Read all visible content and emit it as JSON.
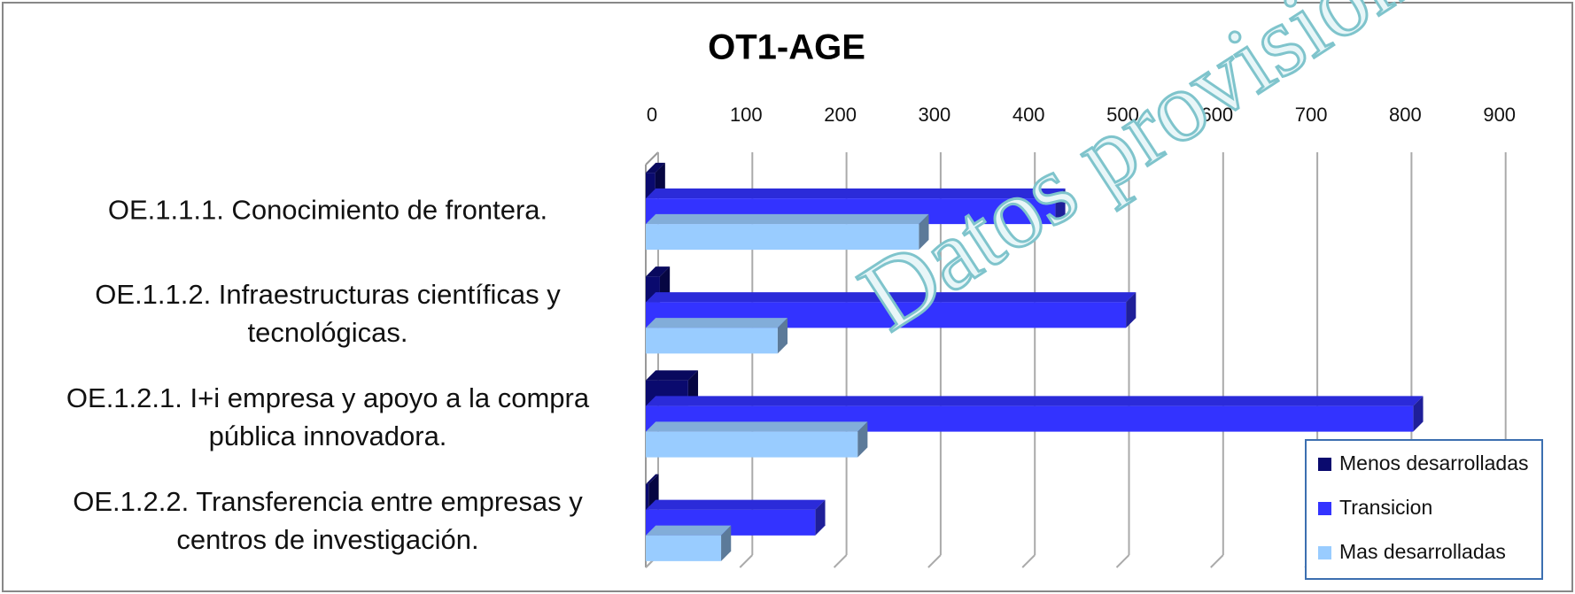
{
  "chart_data": {
    "type": "bar",
    "orientation": "horizontal",
    "three_d": true,
    "title": "OT1-AGE",
    "annotation": "Datos provisionales",
    "categories": [
      "OE.1.1.1. Conocimiento de frontera.",
      "OE.1.1.2. Infraestructuras científicas y tecnológicas.",
      "OE.1.2.1.   I+i empresa y apoyo a la compra pública innovadora.",
      "OE.1.2.2. Transferencia entre empresas y centros de investigación."
    ],
    "series": [
      {
        "name": "Menos desarrolladas",
        "color": "#0a0a6e",
        "values": [
          10,
          15,
          45,
          3
        ]
      },
      {
        "name": "Transicion",
        "color": "#3333ff",
        "values": [
          435,
          510,
          815,
          180
        ]
      },
      {
        "name": "Mas desarrolladas",
        "color": "#99ccff",
        "values": [
          290,
          140,
          225,
          80
        ]
      }
    ],
    "xlim": [
      0,
      900
    ],
    "xticks": [
      0,
      100,
      200,
      300,
      400,
      500,
      600,
      700,
      800,
      900
    ],
    "grid": true,
    "legend": "lower right"
  }
}
